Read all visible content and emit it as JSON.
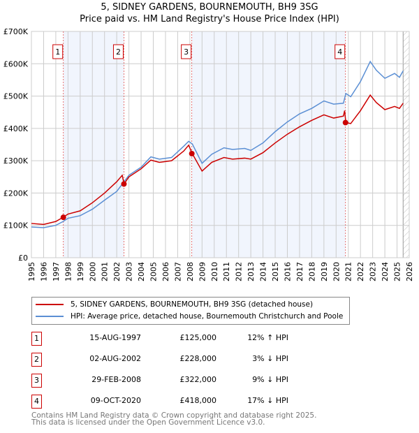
{
  "chart_data": {
    "type": "line",
    "title": "5, SIDNEY GARDENS, BOURNEMOUTH, BH9 3SG",
    "subtitle": "Price paid vs. HM Land Registry's House Price Index (HPI)",
    "xlim": [
      1995,
      2026
    ],
    "ylim": [
      0,
      700000
    ],
    "x_ticks": [
      "1995",
      "1996",
      "1997",
      "1998",
      "1999",
      "2000",
      "2001",
      "2002",
      "2003",
      "2004",
      "2005",
      "2006",
      "2007",
      "2008",
      "2009",
      "2010",
      "2011",
      "2012",
      "2013",
      "2014",
      "2015",
      "2016",
      "2017",
      "2018",
      "2019",
      "2020",
      "2021",
      "2022",
      "2023",
      "2024",
      "2025",
      "2026"
    ],
    "y_ticks": [
      {
        "v": 0,
        "label": "£0"
      },
      {
        "v": 100000,
        "label": "£100K"
      },
      {
        "v": 200000,
        "label": "£200K"
      },
      {
        "v": 300000,
        "label": "£300K"
      },
      {
        "v": 400000,
        "label": "£400K"
      },
      {
        "v": 500000,
        "label": "£500K"
      },
      {
        "v": 600000,
        "label": "£600K"
      },
      {
        "v": 700000,
        "label": "£700K"
      }
    ],
    "grid": true,
    "series": [
      {
        "name": "5, SIDNEY GARDENS, BOURNEMOUTH, BH9 3SG (detached house)",
        "color": "#cc0000",
        "x": [
          1995,
          1996,
          1997,
          1997.6,
          1998,
          1999,
          2000,
          2001,
          2002,
          2002.45,
          2002.6,
          2003,
          2004,
          2004.8,
          2005.5,
          2006.5,
          2007.5,
          2007.9,
          2008.2,
          2009,
          2009.8,
          2010.8,
          2011.5,
          2012.5,
          2013,
          2014,
          2015,
          2016,
          2017,
          2018,
          2019,
          2019.8,
          2020.6,
          2020.7,
          2020.8,
          2021.2,
          2022,
          2022.8,
          2023.3,
          2024,
          2024.8,
          2025.2,
          2025.5
        ],
        "y": [
          106000,
          103000,
          112000,
          125000,
          135000,
          145000,
          170000,
          200000,
          235000,
          255000,
          228000,
          250000,
          275000,
          302000,
          295000,
          300000,
          330000,
          348000,
          322000,
          268000,
          295000,
          310000,
          305000,
          308000,
          305000,
          325000,
          355000,
          382000,
          405000,
          425000,
          442000,
          432000,
          438000,
          455000,
          418000,
          415000,
          455000,
          503000,
          480000,
          458000,
          468000,
          462000,
          478000
        ]
      },
      {
        "name": "HPI: Average price, detached house, Bournemouth Christchurch and Poole",
        "color": "#5b8fd4",
        "x": [
          1995,
          1996,
          1997,
          1997.6,
          1998,
          1999,
          2000,
          2001,
          2002,
          2002.6,
          2003,
          2004,
          2004.8,
          2005.5,
          2006.5,
          2007.5,
          2007.9,
          2008.2,
          2009,
          2009.8,
          2010.8,
          2011.5,
          2012.5,
          2013,
          2014,
          2015,
          2016,
          2017,
          2018,
          2019,
          2019.8,
          2020.6,
          2020.8,
          2021.2,
          2022,
          2022.8,
          2023.3,
          2024,
          2024.8,
          2025.2,
          2025.5
        ],
        "y": [
          95000,
          93000,
          100000,
          112000,
          122000,
          130000,
          150000,
          178000,
          205000,
          235000,
          255000,
          280000,
          312000,
          305000,
          310000,
          345000,
          360000,
          352000,
          292000,
          320000,
          340000,
          335000,
          338000,
          332000,
          355000,
          390000,
          420000,
          445000,
          462000,
          485000,
          475000,
          478000,
          508000,
          498000,
          545000,
          607000,
          580000,
          555000,
          570000,
          558000,
          578000
        ]
      }
    ],
    "sales": [
      {
        "id": "1",
        "x": 1997.62,
        "y": 125000,
        "date": "15-AUG-1997",
        "price": "£125,000",
        "hpi": "12% ↑ HPI"
      },
      {
        "id": "2",
        "x": 2002.59,
        "y": 228000,
        "date": "02-AUG-2002",
        "price": "£228,000",
        "hpi": "3% ↓ HPI"
      },
      {
        "id": "3",
        "x": 2008.16,
        "y": 322000,
        "date": "29-FEB-2008",
        "price": "£322,000",
        "hpi": "9% ↓ HPI"
      },
      {
        "id": "4",
        "x": 2020.77,
        "y": 418000,
        "date": "09-OCT-2020",
        "price": "£418,000",
        "hpi": "17% ↓ HPI"
      }
    ],
    "legend_position": "below"
  },
  "footer": {
    "line1": "Contains HM Land Registry data © Crown copyright and database right 2025.",
    "line2": "This data is licensed under the Open Government Licence v3.0."
  }
}
